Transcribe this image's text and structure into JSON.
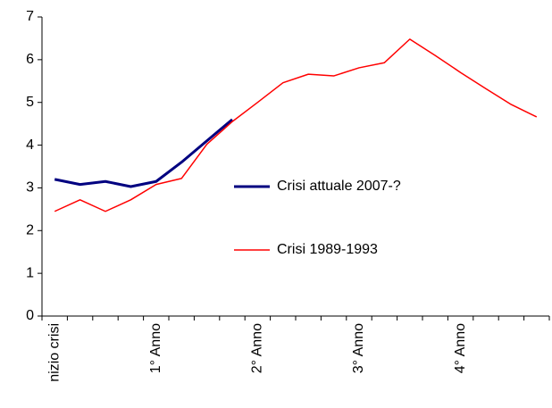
{
  "chart_data": {
    "type": "line",
    "categories": [
      "nizio crisi",
      null,
      null,
      null,
      "1° Anno",
      null,
      null,
      null,
      "2° Anno",
      null,
      null,
      null,
      "3° Anno",
      null,
      null,
      null,
      "4° Anno",
      null,
      null,
      null
    ],
    "series": [
      {
        "name": "Crisi attuale 2007-?",
        "color": "#000080",
        "values": [
          3.2,
          3.08,
          3.15,
          3.03,
          3.15,
          3.6,
          4.1,
          4.6,
          null,
          null,
          null,
          null,
          null,
          null,
          null,
          null,
          null,
          null,
          null,
          null
        ]
      },
      {
        "name": "Crisi 1989-1993",
        "color": "#ff0000",
        "values": [
          2.45,
          2.72,
          2.45,
          2.72,
          3.08,
          3.22,
          4.02,
          4.55,
          5.0,
          5.46,
          5.66,
          5.62,
          5.81,
          5.93,
          6.48,
          6.1,
          5.7,
          5.32,
          4.95,
          4.66
        ]
      }
    ],
    "ylim": [
      0,
      7
    ],
    "yticks": [
      0,
      1,
      2,
      3,
      4,
      5,
      6,
      7
    ],
    "grid": false
  }
}
